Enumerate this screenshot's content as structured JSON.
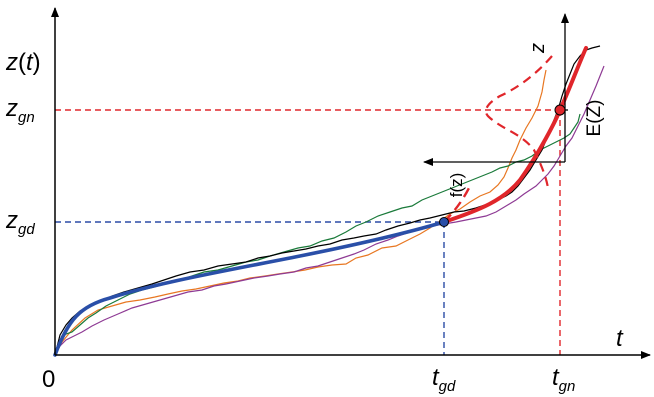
{
  "labels": {
    "y_axis": {
      "main": "z",
      "paren_open": "(",
      "var": "t",
      "paren_close": ")"
    },
    "x_axis": "t",
    "origin": "0",
    "z_gn": {
      "main": "z",
      "sub": "gn"
    },
    "z_gd": {
      "main": "z",
      "sub": "gd"
    },
    "t_gd": {
      "main": "t",
      "sub": "gd"
    },
    "t_gn": {
      "main": "t",
      "sub": "gn"
    },
    "inset_z_axis": "z",
    "density_fz": "f(z)",
    "expectation": "E(Z)"
  },
  "colors": {
    "axes": "#000000",
    "mean_curve_blue": "#2a4fa8",
    "mean_curve_red": "#e0262b",
    "reference_blue_dashed": "#2b4ca6",
    "reference_red_dashed": "#e0262b",
    "sample_paths": [
      "#000000",
      "#e87722",
      "#1a7a3a",
      "#8e3a94"
    ]
  }
}
